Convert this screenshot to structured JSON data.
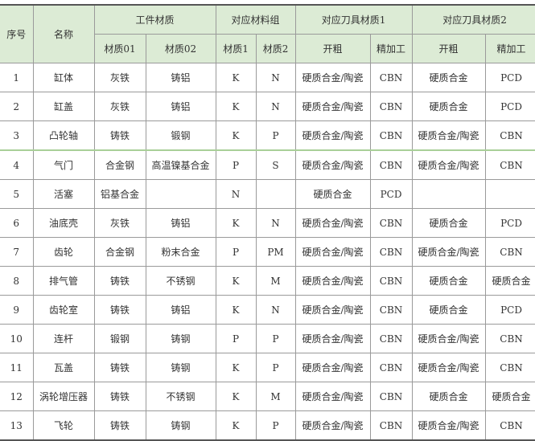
{
  "header": {
    "seq": "序号",
    "name": "名称",
    "workpiece_material": "工件材质",
    "material_group": "对应材料组",
    "tool_material_1": "对应刀具材质1",
    "tool_material_2": "对应刀具材质2",
    "sub": [
      "材质01",
      "材质02",
      "材质1",
      "材质2",
      "开粗",
      "精加工",
      "开粗",
      "精加工"
    ]
  },
  "rows": [
    [
      "1",
      "缸体",
      "灰铁",
      "铸铝",
      "K",
      "N",
      "硬质合金/陶瓷",
      "CBN",
      "硬质合金",
      "PCD"
    ],
    [
      "2",
      "缸盖",
      "灰铁",
      "铸铝",
      "K",
      "N",
      "硬质合金/陶瓷",
      "CBN",
      "硬质合金",
      "PCD"
    ],
    [
      "3",
      "凸轮轴",
      "铸铁",
      "锻钢",
      "K",
      "P",
      "硬质合金/陶瓷",
      "CBN",
      "硬质合金/陶瓷",
      "CBN"
    ],
    [
      "4",
      "气门",
      "合金钢",
      "高温镍基合金",
      "P",
      "S",
      "硬质合金/陶瓷",
      "CBN",
      "硬质合金/陶瓷",
      "CBN"
    ],
    [
      "5",
      "活塞",
      "铝基合金",
      "",
      "N",
      "",
      "硬质合金",
      "PCD",
      "",
      ""
    ],
    [
      "6",
      "油底壳",
      "灰铁",
      "铸铝",
      "K",
      "N",
      "硬质合金/陶瓷",
      "CBN",
      "硬质合金",
      "PCD"
    ],
    [
      "7",
      "齿轮",
      "合金钢",
      "粉末合金",
      "P",
      "PM",
      "硬质合金/陶瓷",
      "CBN",
      "硬质合金/陶瓷",
      "CBN"
    ],
    [
      "8",
      "排气管",
      "铸铁",
      "不锈钢",
      "K",
      "M",
      "硬质合金/陶瓷",
      "CBN",
      "硬质合金",
      "硬质合金"
    ],
    [
      "9",
      "齿轮室",
      "铸铁",
      "铸铝",
      "K",
      "N",
      "硬质合金/陶瓷",
      "CBN",
      "硬质合金",
      "PCD"
    ],
    [
      "10",
      "连杆",
      "锻钢",
      "铸钢",
      "P",
      "P",
      "硬质合金/陶瓷",
      "CBN",
      "硬质合金/陶瓷",
      "CBN"
    ],
    [
      "11",
      "瓦盖",
      "铸铁",
      "铸钢",
      "K",
      "P",
      "硬质合金/陶瓷",
      "CBN",
      "硬质合金/陶瓷",
      "CBN"
    ],
    [
      "12",
      "涡轮增压器",
      "铸铁",
      "不锈钢",
      "K",
      "M",
      "硬质合金/陶瓷",
      "CBN",
      "硬质合金",
      "硬质合金"
    ],
    [
      "13",
      "飞轮",
      "铸铁",
      "铸钢",
      "K",
      "P",
      "硬质合金/陶瓷",
      "CBN",
      "硬质合金/陶瓷",
      "CBN"
    ]
  ],
  "colors": {
    "header_bg": "#dcebd5",
    "separator": "#a9cf98"
  }
}
